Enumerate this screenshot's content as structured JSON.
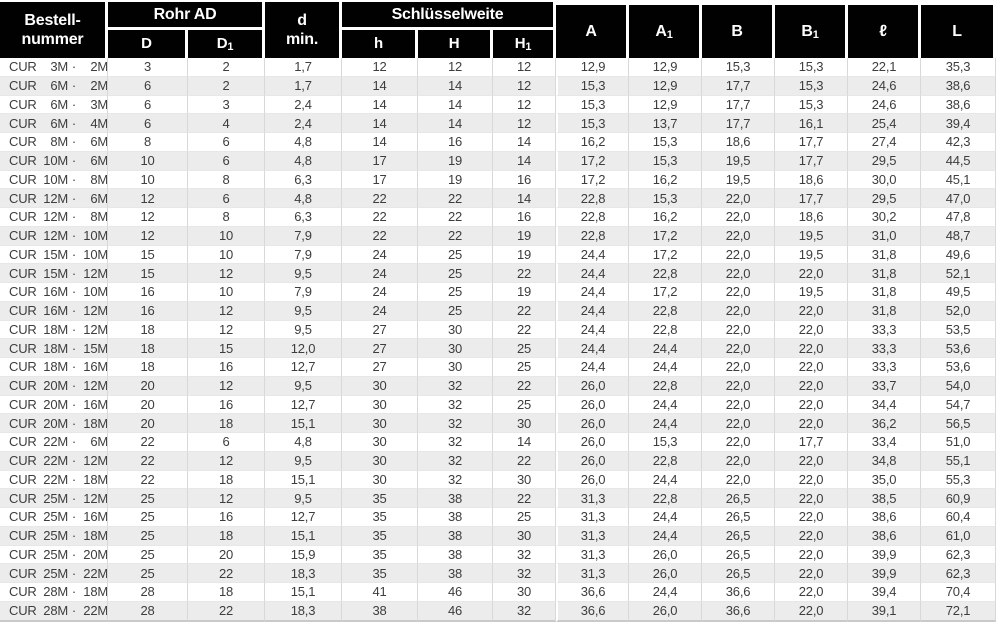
{
  "header": {
    "order_number": {
      "line1": "Bestell-",
      "line2": "nummer"
    },
    "rohr_ad": "Rohr AD",
    "d_min": {
      "line1": "d",
      "line2": "min."
    },
    "schluesselweite": "Schlüsselweite",
    "sub_columns": [
      {
        "base": "D",
        "sub": ""
      },
      {
        "base": "D",
        "sub": "1"
      },
      {
        "base": "h",
        "sub": ""
      },
      {
        "base": "H",
        "sub": ""
      },
      {
        "base": "H",
        "sub": "1"
      }
    ],
    "value_columns": [
      {
        "base": "A",
        "sub": ""
      },
      {
        "base": "A",
        "sub": "1"
      },
      {
        "base": "B",
        "sub": ""
      },
      {
        "base": "B",
        "sub": "1"
      },
      {
        "base": "ℓ",
        "sub": ""
      },
      {
        "base": "L",
        "sub": ""
      }
    ]
  },
  "colors": {
    "header_bg": "#010101",
    "header_text": "#ffffff",
    "row_alt_bg": "#ececec",
    "body_text": "#3d3d3d"
  },
  "table": {
    "code_prefix": "CUR",
    "code_separator": "·",
    "rows": [
      {
        "size1": "3M",
        "size2": "2M",
        "values": [
          "3",
          "2",
          "1,7",
          "12",
          "12",
          "12",
          "12,9",
          "12,9",
          "15,3",
          "15,3",
          "22,1",
          "35,3"
        ]
      },
      {
        "size1": "6M",
        "size2": "2M",
        "values": [
          "6",
          "2",
          "1,7",
          "14",
          "14",
          "12",
          "15,3",
          "12,9",
          "17,7",
          "15,3",
          "24,6",
          "38,6"
        ]
      },
      {
        "size1": "6M",
        "size2": "3M",
        "values": [
          "6",
          "3",
          "2,4",
          "14",
          "14",
          "12",
          "15,3",
          "12,9",
          "17,7",
          "15,3",
          "24,6",
          "38,6"
        ]
      },
      {
        "size1": "6M",
        "size2": "4M",
        "values": [
          "6",
          "4",
          "2,4",
          "14",
          "14",
          "12",
          "15,3",
          "13,7",
          "17,7",
          "16,1",
          "25,4",
          "39,4"
        ]
      },
      {
        "size1": "8M",
        "size2": "6M",
        "values": [
          "8",
          "6",
          "4,8",
          "14",
          "16",
          "14",
          "16,2",
          "15,3",
          "18,6",
          "17,7",
          "27,4",
          "42,3"
        ]
      },
      {
        "size1": "10M",
        "size2": "6M",
        "values": [
          "10",
          "6",
          "4,8",
          "17",
          "19",
          "14",
          "17,2",
          "15,3",
          "19,5",
          "17,7",
          "29,5",
          "44,5"
        ]
      },
      {
        "size1": "10M",
        "size2": "8M",
        "values": [
          "10",
          "8",
          "6,3",
          "17",
          "19",
          "16",
          "17,2",
          "16,2",
          "19,5",
          "18,6",
          "30,0",
          "45,1"
        ]
      },
      {
        "size1": "12M",
        "size2": "6M",
        "values": [
          "12",
          "6",
          "4,8",
          "22",
          "22",
          "14",
          "22,8",
          "15,3",
          "22,0",
          "17,7",
          "29,5",
          "47,0"
        ]
      },
      {
        "size1": "12M",
        "size2": "8M",
        "values": [
          "12",
          "8",
          "6,3",
          "22",
          "22",
          "16",
          "22,8",
          "16,2",
          "22,0",
          "18,6",
          "30,2",
          "47,8"
        ]
      },
      {
        "size1": "12M",
        "size2": "10M",
        "values": [
          "12",
          "10",
          "7,9",
          "22",
          "22",
          "19",
          "22,8",
          "17,2",
          "22,0",
          "19,5",
          "31,0",
          "48,7"
        ]
      },
      {
        "size1": "15M",
        "size2": "10M",
        "values": [
          "15",
          "10",
          "7,9",
          "24",
          "25",
          "19",
          "24,4",
          "17,2",
          "22,0",
          "19,5",
          "31,8",
          "49,6"
        ]
      },
      {
        "size1": "15M",
        "size2": "12M",
        "values": [
          "15",
          "12",
          "9,5",
          "24",
          "25",
          "22",
          "24,4",
          "22,8",
          "22,0",
          "22,0",
          "31,8",
          "52,1"
        ]
      },
      {
        "size1": "16M",
        "size2": "10M",
        "values": [
          "16",
          "10",
          "7,9",
          "24",
          "25",
          "19",
          "24,4",
          "17,2",
          "22,0",
          "19,5",
          "31,8",
          "49,5"
        ]
      },
      {
        "size1": "16M",
        "size2": "12M",
        "values": [
          "16",
          "12",
          "9,5",
          "24",
          "25",
          "22",
          "24,4",
          "22,8",
          "22,0",
          "22,0",
          "31,8",
          "52,0"
        ]
      },
      {
        "size1": "18M",
        "size2": "12M",
        "values": [
          "18",
          "12",
          "9,5",
          "27",
          "30",
          "22",
          "24,4",
          "22,8",
          "22,0",
          "22,0",
          "33,3",
          "53,5"
        ]
      },
      {
        "size1": "18M",
        "size2": "15M",
        "values": [
          "18",
          "15",
          "12,0",
          "27",
          "30",
          "25",
          "24,4",
          "24,4",
          "22,0",
          "22,0",
          "33,3",
          "53,6"
        ]
      },
      {
        "size1": "18M",
        "size2": "16M",
        "values": [
          "18",
          "16",
          "12,7",
          "27",
          "30",
          "25",
          "24,4",
          "24,4",
          "22,0",
          "22,0",
          "33,3",
          "53,6"
        ]
      },
      {
        "size1": "20M",
        "size2": "12M",
        "values": [
          "20",
          "12",
          "9,5",
          "30",
          "32",
          "22",
          "26,0",
          "22,8",
          "22,0",
          "22,0",
          "33,7",
          "54,0"
        ]
      },
      {
        "size1": "20M",
        "size2": "16M",
        "values": [
          "20",
          "16",
          "12,7",
          "30",
          "32",
          "25",
          "26,0",
          "24,4",
          "22,0",
          "22,0",
          "34,4",
          "54,7"
        ]
      },
      {
        "size1": "20M",
        "size2": "18M",
        "values": [
          "20",
          "18",
          "15,1",
          "30",
          "32",
          "30",
          "26,0",
          "24,4",
          "22,0",
          "22,0",
          "36,2",
          "56,5"
        ]
      },
      {
        "size1": "22M",
        "size2": "6M",
        "values": [
          "22",
          "6",
          "4,8",
          "30",
          "32",
          "14",
          "26,0",
          "15,3",
          "22,0",
          "17,7",
          "33,4",
          "51,0"
        ]
      },
      {
        "size1": "22M",
        "size2": "12M",
        "values": [
          "22",
          "12",
          "9,5",
          "30",
          "32",
          "22",
          "26,0",
          "22,8",
          "22,0",
          "22,0",
          "34,8",
          "55,1"
        ]
      },
      {
        "size1": "22M",
        "size2": "18M",
        "values": [
          "22",
          "18",
          "15,1",
          "30",
          "32",
          "30",
          "26,0",
          "24,4",
          "22,0",
          "22,0",
          "35,0",
          "55,3"
        ]
      },
      {
        "size1": "25M",
        "size2": "12M",
        "values": [
          "25",
          "12",
          "9,5",
          "35",
          "38",
          "22",
          "31,3",
          "22,8",
          "26,5",
          "22,0",
          "38,5",
          "60,9"
        ]
      },
      {
        "size1": "25M",
        "size2": "16M",
        "values": [
          "25",
          "16",
          "12,7",
          "35",
          "38",
          "25",
          "31,3",
          "24,4",
          "26,5",
          "22,0",
          "38,6",
          "60,4"
        ]
      },
      {
        "size1": "25M",
        "size2": "18M",
        "values": [
          "25",
          "18",
          "15,1",
          "35",
          "38",
          "30",
          "31,3",
          "24,4",
          "26,5",
          "22,0",
          "38,6",
          "61,0"
        ]
      },
      {
        "size1": "25M",
        "size2": "20M",
        "values": [
          "25",
          "20",
          "15,9",
          "35",
          "38",
          "32",
          "31,3",
          "26,0",
          "26,5",
          "22,0",
          "39,9",
          "62,3"
        ]
      },
      {
        "size1": "25M",
        "size2": "22M",
        "values": [
          "25",
          "22",
          "18,3",
          "35",
          "38",
          "32",
          "31,3",
          "26,0",
          "26,5",
          "22,0",
          "39,9",
          "62,3"
        ]
      },
      {
        "size1": "28M",
        "size2": "18M",
        "values": [
          "28",
          "18",
          "15,1",
          "41",
          "46",
          "30",
          "36,6",
          "24,4",
          "36,6",
          "22,0",
          "39,4",
          "70,4"
        ]
      },
      {
        "size1": "28M",
        "size2": "22M",
        "values": [
          "28",
          "22",
          "18,3",
          "38",
          "46",
          "32",
          "36,6",
          "26,0",
          "36,6",
          "22,0",
          "39,1",
          "72,1"
        ]
      }
    ]
  }
}
